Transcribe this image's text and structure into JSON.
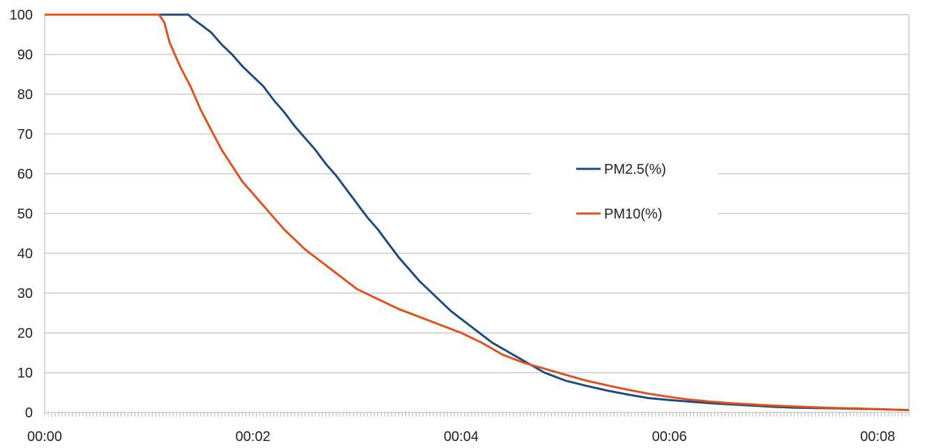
{
  "chart_data": {
    "type": "line",
    "title": "",
    "xlabel": "",
    "ylabel": "",
    "x_unit": "minutes",
    "xlim": [
      0,
      8.3
    ],
    "ylim": [
      0,
      100
    ],
    "y_ticks": [
      0,
      10,
      20,
      30,
      40,
      50,
      60,
      70,
      80,
      90,
      100
    ],
    "x_ticks": [
      {
        "value": 0,
        "label": "00:00"
      },
      {
        "value": 2,
        "label": "00:02"
      },
      {
        "value": 4,
        "label": "00:04"
      },
      {
        "value": 6,
        "label": "00:06"
      },
      {
        "value": 8,
        "label": "00:08"
      }
    ],
    "grid": true,
    "legend_position": "center-right",
    "series": [
      {
        "name": "PM2.5(%)",
        "color": "#1c4a7e",
        "points": [
          [
            0,
            100
          ],
          [
            1.38,
            100
          ],
          [
            1.42,
            99
          ],
          [
            1.5,
            97.5
          ],
          [
            1.6,
            95.5
          ],
          [
            1.7,
            92.5
          ],
          [
            1.8,
            90
          ],
          [
            1.9,
            87
          ],
          [
            2.0,
            84.5
          ],
          [
            2.1,
            82
          ],
          [
            2.2,
            78.5
          ],
          [
            2.3,
            75.5
          ],
          [
            2.4,
            72
          ],
          [
            2.5,
            69
          ],
          [
            2.6,
            66
          ],
          [
            2.7,
            62.5
          ],
          [
            2.8,
            59.5
          ],
          [
            2.9,
            56
          ],
          [
            3.0,
            52.5
          ],
          [
            3.1,
            49
          ],
          [
            3.2,
            46
          ],
          [
            3.3,
            42.5
          ],
          [
            3.4,
            39
          ],
          [
            3.5,
            36
          ],
          [
            3.6,
            33
          ],
          [
            3.7,
            30.5
          ],
          [
            3.8,
            28
          ],
          [
            3.9,
            25.5
          ],
          [
            4.0,
            23.5
          ],
          [
            4.1,
            21.5
          ],
          [
            4.2,
            19.5
          ],
          [
            4.3,
            17.5
          ],
          [
            4.4,
            16
          ],
          [
            4.5,
            14.5
          ],
          [
            4.6,
            13
          ],
          [
            4.7,
            11.5
          ],
          [
            4.8,
            10
          ],
          [
            4.9,
            9
          ],
          [
            5.0,
            8
          ],
          [
            5.2,
            6.7
          ],
          [
            5.4,
            5.5
          ],
          [
            5.6,
            4.5
          ],
          [
            5.8,
            3.6
          ],
          [
            6.0,
            3.1
          ],
          [
            6.2,
            2.7
          ],
          [
            6.4,
            2.3
          ],
          [
            6.6,
            2
          ],
          [
            6.8,
            1.7
          ],
          [
            7.0,
            1.4
          ],
          [
            7.2,
            1.2
          ],
          [
            7.4,
            1.1
          ],
          [
            7.6,
            1
          ],
          [
            7.8,
            0.9
          ],
          [
            8.0,
            0.8
          ],
          [
            8.3,
            0.6
          ]
        ]
      },
      {
        "name": "PM10(%)",
        "color": "#e0501a",
        "points": [
          [
            0,
            100
          ],
          [
            1.1,
            100
          ],
          [
            1.15,
            98
          ],
          [
            1.2,
            93
          ],
          [
            1.3,
            87
          ],
          [
            1.4,
            82
          ],
          [
            1.5,
            76
          ],
          [
            1.6,
            71
          ],
          [
            1.7,
            66
          ],
          [
            1.8,
            62
          ],
          [
            1.9,
            58
          ],
          [
            2.0,
            55
          ],
          [
            2.1,
            52
          ],
          [
            2.2,
            49
          ],
          [
            2.3,
            46
          ],
          [
            2.4,
            43.5
          ],
          [
            2.5,
            41
          ],
          [
            2.6,
            39
          ],
          [
            2.7,
            37
          ],
          [
            2.8,
            35
          ],
          [
            2.9,
            33
          ],
          [
            3.0,
            31
          ],
          [
            3.2,
            28.5
          ],
          [
            3.4,
            26
          ],
          [
            3.6,
            24
          ],
          [
            3.8,
            22
          ],
          [
            4.0,
            20
          ],
          [
            4.2,
            17.5
          ],
          [
            4.4,
            14.5
          ],
          [
            4.6,
            12.5
          ],
          [
            4.8,
            11
          ],
          [
            5.0,
            9.5
          ],
          [
            5.2,
            8
          ],
          [
            5.4,
            6.8
          ],
          [
            5.6,
            5.7
          ],
          [
            5.8,
            4.7
          ],
          [
            6.0,
            3.9
          ],
          [
            6.2,
            3.2
          ],
          [
            6.4,
            2.7
          ],
          [
            6.6,
            2.3
          ],
          [
            6.8,
            2
          ],
          [
            7.0,
            1.7
          ],
          [
            7.2,
            1.5
          ],
          [
            7.4,
            1.3
          ],
          [
            7.6,
            1.1
          ],
          [
            7.8,
            1
          ],
          [
            8.0,
            0.8
          ],
          [
            8.3,
            0.6
          ]
        ]
      }
    ]
  }
}
